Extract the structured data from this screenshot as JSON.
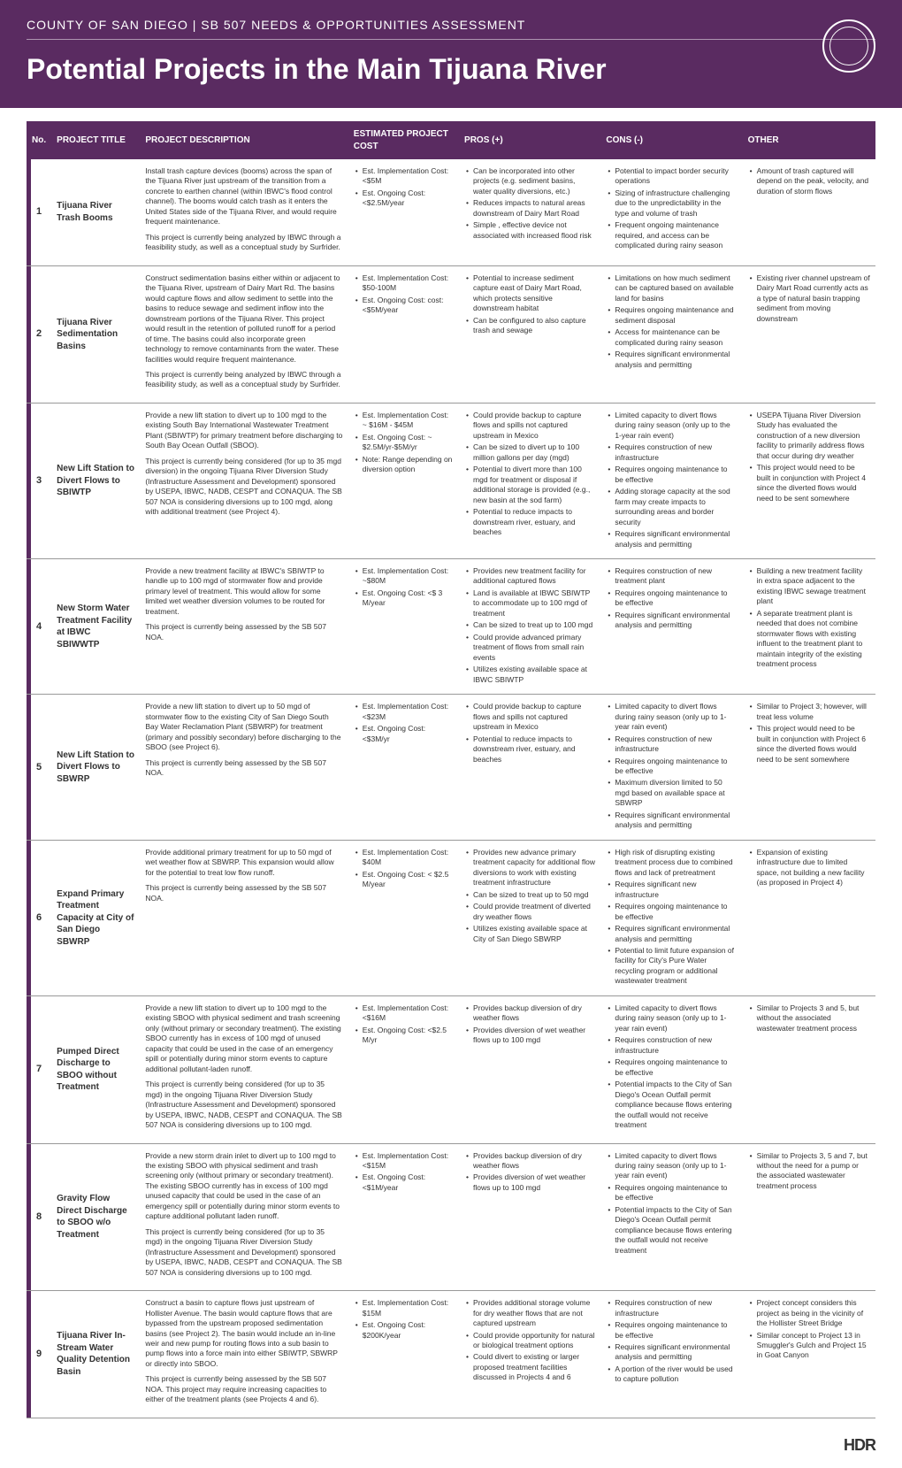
{
  "header": {
    "top": "COUNTY OF SAN DIEGO   |   SB 507 NEEDS & OPPORTUNITIES ASSESSMENT",
    "title": "Potential Projects in the Main Tijuana River"
  },
  "columns": {
    "no": "No.",
    "title": "PROJECT TITLE",
    "desc": "PROJECT DESCRIPTION",
    "cost": "ESTIMATED PROJECT COST",
    "pros": "PROS  (+)",
    "cons": "CONS  (-)",
    "other": "OTHER"
  },
  "footer": "HDR",
  "rows": [
    {
      "no": "1",
      "title": "Tijuana River Trash Booms",
      "desc": [
        "Install trash capture devices (booms) across the span of the Tijuana River just upstream of the transition from a concrete to earthen channel (within IBWC's flood control channel). The booms would catch trash as it enters the United States side of the Tijuana River, and would require frequent maintenance.",
        "This project is currently being analyzed by IBWC through a feasibility study, as well as a conceptual study by Surfrider."
      ],
      "cost": [
        "Est. Implementation Cost: <$5M",
        "Est. Ongoing Cost: <$2.5M/year"
      ],
      "pros": [
        "Can be incorporated into other projects (e.g. sediment basins, water quality diversions, etc.)",
        "Reduces impacts to natural areas downstream of Dairy Mart Road",
        "Simple , effective device not associated with increased flood risk"
      ],
      "cons": [
        "Potential to impact border security operations",
        "Sizing of infrastructure challenging due to the unpredictability in the type and volume of trash",
        "Frequent ongoing maintenance required, and access can be complicated during rainy season"
      ],
      "other": [
        "Amount of trash captured will depend on the peak, velocity, and duration of storm flows"
      ]
    },
    {
      "no": "2",
      "title": "Tijuana River Sedimentation Basins",
      "desc": [
        "Construct sedimentation basins either within or adjacent to the Tijuana River, upstream of Dairy Mart Rd. The basins would capture flows and allow sediment to settle into the basins to reduce sewage and sediment inflow into the downstream portions of the Tijuana River. This project would result in the retention of polluted runoff for a period of time. The basins could also incorporate green technology to remove contaminants from the water. These facilities would require frequent maintenance.",
        "This project is currently being analyzed by IBWC through a feasibility study, as well as a conceptual study by Surfrider."
      ],
      "cost": [
        "Est. Implementation Cost: $50-100M",
        "Est. Ongoing Cost: cost: <$5M/year"
      ],
      "pros": [
        "Potential to increase sediment capture east of Dairy Mart Road, which protects sensitive downstream habitat",
        "Can be configured to also capture trash and sewage"
      ],
      "cons": [
        "Limitations on how much sediment can be captured based on available land for basins",
        "Requires ongoing maintenance and sediment disposal",
        "Access for maintenance can be complicated during rainy season",
        "Requires significant environmental analysis and permitting"
      ],
      "other": [
        "Existing river channel upstream of Dairy Mart Road currently acts as a type of natural basin trapping sediment from moving downstream"
      ]
    },
    {
      "no": "3",
      "title": "New Lift Station to Divert Flows to SBIWTP",
      "desc": [
        "Provide a new lift station to divert up to 100 mgd to the existing South Bay International Wastewater Treatment Plant (SBIWTP) for primary treatment before discharging to South Bay Ocean Outfall (SBOO).",
        "This project is currently being considered (for up to 35 mgd diversion) in the ongoing Tijuana River Diversion Study (Infrastructure Assessment and Development) sponsored by USEPA, IBWC, NADB, CESPT and CONAQUA. The SB 507 NOA is considering diversions up to 100 mgd, along with additional treatment (see Project 4)."
      ],
      "cost": [
        "Est. Implementation Cost: ~ $16M - $45M",
        "Est. Ongoing Cost: ~ $2.5M/yr-$5M/yr",
        "Note: Range depending on diversion option"
      ],
      "pros": [
        "Could provide backup to capture flows and spills not captured upstream in Mexico",
        "Can be sized to divert up to 100 million gallons per day (mgd)",
        "Potential to divert more than 100 mgd for treatment or disposal if additional storage is provided (e.g., new basin at the sod farm)",
        "Potential to reduce impacts to downstream river, estuary, and beaches"
      ],
      "cons": [
        "Limited capacity to divert flows during rainy season (only up to the 1-year rain event)",
        "Requires construction of new infrastructure",
        "Requires ongoing maintenance to be effective",
        "Adding storage capacity at the sod farm may create impacts to surrounding areas and border security",
        "Requires significant environmental analysis and permitting"
      ],
      "other": [
        "USEPA Tijuana River Diversion Study has evaluated the construction of a new diversion facility to primarily address flows that occur during dry weather",
        "This project would need to be built in conjunction with Project 4 since the diverted flows would need to be sent somewhere"
      ]
    },
    {
      "no": "4",
      "title": "New Storm Water Treatment Facility at IBWC SBIWWTP",
      "desc": [
        "Provide a new treatment facility at IBWC's SBIWTP to handle up to 100 mgd of stormwater flow and provide primary level of treatment. This would allow for some limited wet weather diversion volumes to be routed for treatment.",
        "This project is currently being assessed by the SB 507 NOA."
      ],
      "cost": [
        "Est. Implementation Cost: ~$80M",
        "Est. Ongoing Cost: <$ 3 M/year"
      ],
      "pros": [
        "Provides new treatment facility for additional captured flows",
        "Land is available at IBWC SBIWTP to accommodate up to 100 mgd of treatment",
        "Can be sized to treat up to 100 mgd",
        "Could provide advanced primary treatment of flows from small rain events",
        "Utilizes existing available space at IBWC SBIWTP"
      ],
      "cons": [
        "Requires construction of new treatment plant",
        "Requires ongoing maintenance to be effective",
        "Requires significant environmental analysis and permitting"
      ],
      "other": [
        "Building a new treatment facility in extra space adjacent to the existing IBWC sewage treatment plant",
        "A separate treatment plant is needed that does not combine stormwater flows with existing influent to the treatment plant to maintain integrity of the existing treatment process"
      ]
    },
    {
      "no": "5",
      "title": "New Lift Station to Divert Flows to SBWRP",
      "desc": [
        "Provide a new lift station to divert up to 50 mgd of stormwater flow to the existing City of San Diego South Bay Water Reclamation Plant (SBWRP) for treatment (primary and possibly secondary) before discharging to the SBOO (see Project 6).",
        "This project is currently being assessed by the SB 507 NOA."
      ],
      "cost": [
        "Est. Implementation Cost: <$23M",
        "Est. Ongoing Cost: <$3M/yr"
      ],
      "pros": [
        "Could provide backup to capture flows and spills not captured upstream in Mexico",
        "Potential to reduce impacts to downstream river, estuary, and beaches"
      ],
      "cons": [
        "Limited capacity to divert flows during rainy season (only up to 1-year rain event)",
        "Requires construction of new infrastructure",
        "Requires ongoing maintenance to be effective",
        "Maximum diversion limited to 50 mgd based on available space at SBWRP",
        "Requires significant environmental analysis and permitting"
      ],
      "other": [
        "Similar to Project 3; however, will treat less volume",
        "This project would need to be built in conjunction with Project 6 since the diverted flows would need to be sent somewhere"
      ]
    },
    {
      "no": "6",
      "title": "Expand Primary Treatment Capacity at City of San Diego SBWRP",
      "desc": [
        "Provide additional primary treatment for up to 50 mgd of wet weather flow at SBWRP. This expansion would allow for the potential to treat low flow runoff.",
        "This project is currently being assessed by the SB 507 NOA."
      ],
      "cost": [
        "Est. Implementation Cost: $40M",
        "Est. Ongoing Cost: < $2.5 M/year"
      ],
      "pros": [
        "Provides new advance primary treatment capacity for additional flow diversions to work with existing treatment infrastructure",
        "Can be sized to treat up to 50 mgd",
        "Could provide treatment of diverted dry weather flows",
        "Utilizes existing available space at City of San Diego SBWRP"
      ],
      "cons": [
        "High risk of disrupting existing treatment process due to combined flows and lack of pretreatment",
        "Requires significant new infrastructure",
        "Requires ongoing maintenance to be effective",
        "Requires significant environmental analysis and permitting",
        "Potential to limit future expansion of facility for City's Pure Water recycling program or additional wastewater treatment"
      ],
      "other": [
        "Expansion of existing infrastructure due to limited space, not building a new facility (as proposed in Project 4)"
      ]
    },
    {
      "no": "7",
      "title": "Pumped Direct Discharge to SBOO without Treatment",
      "desc": [
        "Provide a new lift station to divert up to 100 mgd to the existing SBOO with physical sediment and trash screening only (without primary or secondary treatment). The existing SBOO currently has in excess of 100 mgd of unused capacity that could be used in the case of an emergency spill or potentially during minor storm events to capture additional pollutant-laden runoff.",
        "This project is currently being considered (for up to 35 mgd) in the ongoing Tijuana River Diversion Study (Infrastructure Assessment and Development) sponsored by USEPA, IBWC, NADB, CESPT and CONAQUA. The SB 507 NOA is considering diversions up to 100 mgd."
      ],
      "cost": [
        "Est. Implementation Cost: <$16M",
        "Est. Ongoing Cost: <$2.5 M/yr"
      ],
      "pros": [
        "Provides backup diversion of dry weather flows",
        "Provides diversion of wet weather flows up to 100 mgd"
      ],
      "cons": [
        "Limited capacity to divert flows during rainy season (only up to 1-year rain event)",
        "Requires construction of new infrastructure",
        "Requires ongoing maintenance to be effective",
        "Potential impacts to the City of San Diego's Ocean Outfall permit compliance because flows entering the outfall would not receive treatment"
      ],
      "other": [
        "Similar to Projects 3 and 5, but without the associated wastewater treatment process"
      ]
    },
    {
      "no": "8",
      "title": "Gravity Flow Direct Discharge to SBOO w/o Treatment",
      "desc": [
        "Provide a new storm drain inlet to divert up to 100 mgd to the existing SBOO with physical sediment and trash screening only (without primary or secondary treatment). The existing SBOO currently has in excess of 100 mgd unused capacity that could be used in the case of an emergency spill or potentially during minor storm events to capture additional pollutant laden runoff.",
        "This project is currently being considered (for up to 35 mgd) in the ongoing Tijuana River Diversion Study (Infrastructure Assessment and Development) sponsored by USEPA, IBWC, NADB, CESPT and CONAQUA. The SB 507 NOA is considering diversions up to 100 mgd."
      ],
      "cost": [
        "Est. Implementation Cost: <$15M",
        "Est. Ongoing Cost: <$1M/year"
      ],
      "pros": [
        "Provides backup diversion of dry weather flows",
        "Provides diversion of wet weather flows up to 100 mgd"
      ],
      "cons": [
        "Limited capacity to divert flows during rainy season (only up to 1-year rain event)",
        "Requires ongoing maintenance to be effective",
        "Potential impacts to the City of San Diego's Ocean Outfall permit compliance because flows entering the outfall would not receive treatment"
      ],
      "other": [
        "Similar to Projects 3, 5 and 7, but without the need for a pump or the associated wastewater treatment process"
      ]
    },
    {
      "no": "9",
      "title": "Tijuana River In-Stream Water Quality Detention Basin",
      "desc": [
        "Construct a basin to capture flows just upstream of Hollister Avenue. The basin would capture flows that are bypassed from the upstream proposed sedimentation basins (see Project 2). The basin would include an in-line weir and new pump for routing flows into a sub basin to pump flows into a force main into either SBIWTP, SBWRP or directly into SBOO.",
        "This project is currently being assessed by the SB 507 NOA. This project may require increasing capacities to either of the treatment plants (see Projects 4 and 6)."
      ],
      "cost": [
        "Est. Implementation Cost: $15M",
        "Est. Ongoing Cost: $200K/year"
      ],
      "pros": [
        "Provides additional storage volume for dry weather flows that are not captured upstream",
        "Could provide opportunity for natural or biological treatment options",
        "Could divert to existing or larger proposed treatment facilities discussed in Projects 4 and 6"
      ],
      "cons": [
        "Requires construction of new infrastructure",
        "Requires ongoing maintenance to be effective",
        "Requires significant environmental analysis and permitting",
        "A portion of the river would be used to capture pollution"
      ],
      "other": [
        "Project concept considers this project as being in the vicinity of the Hollister Street Bridge",
        "Similar concept to Project 13 in Smuggler's Gulch and Project 15 in Goat Canyon"
      ]
    }
  ]
}
